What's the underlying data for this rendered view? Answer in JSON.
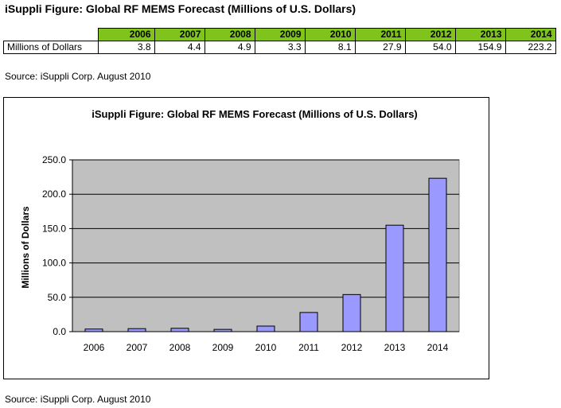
{
  "page_title": "iSuppli Figure: Global RF MEMS Forecast (Millions of U.S. Dollars)",
  "table": {
    "row_label": "Millions of Dollars",
    "years": [
      "2006",
      "2007",
      "2008",
      "2009",
      "2010",
      "2011",
      "2012",
      "2013",
      "2014"
    ],
    "values": [
      "3.8",
      "4.4",
      "4.9",
      "3.3",
      "8.1",
      "27.9",
      "54.0",
      "154.9",
      "223.2"
    ]
  },
  "source_top": "Source: iSuppli Corp. August 2010",
  "source_bottom": "Source: iSuppli Corp. August 2010",
  "colors": {
    "table_header": "#7fc31c",
    "plot_background": "#c0c0c0",
    "bar_fill": "#9999ff",
    "bar_stroke": "#000000"
  },
  "chart_data": {
    "type": "bar",
    "title": "iSuppli Figure: Global RF MEMS Forecast  (Millions of U.S. Dollars)",
    "xlabel": "",
    "ylabel": "Millions of Dollars",
    "categories": [
      "2006",
      "2007",
      "2008",
      "2009",
      "2010",
      "2011",
      "2012",
      "2013",
      "2014"
    ],
    "values": [
      3.8,
      4.4,
      4.9,
      3.3,
      8.1,
      27.9,
      54.0,
      154.9,
      223.2
    ],
    "ylim": [
      0,
      250
    ],
    "yticks": [
      0,
      50,
      100,
      150,
      200,
      250
    ],
    "ytick_labels": [
      "0.0",
      "50.0",
      "100.0",
      "150.0",
      "200.0",
      "250.0"
    ],
    "grid": true,
    "legend": "none"
  }
}
